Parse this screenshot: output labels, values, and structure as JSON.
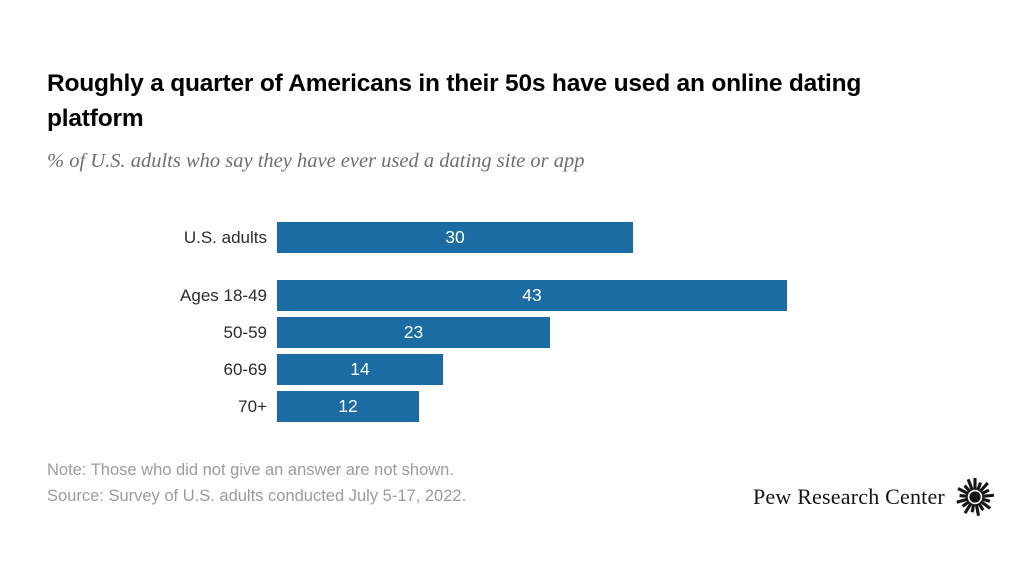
{
  "header": {
    "title": "Roughly a quarter of Americans in their 50s have used an online dating platform",
    "subtitle": "% of U.S. adults who say they have ever used a dating site or app"
  },
  "chart_data": {
    "type": "bar",
    "orientation": "horizontal",
    "categories": [
      "U.S. adults",
      "Ages 18-49",
      "50-59",
      "60-69",
      "70+"
    ],
    "values": [
      30,
      43,
      23,
      14,
      12
    ],
    "value_labels": [
      "30",
      "43",
      "23",
      "14",
      "12"
    ],
    "value_labels_position": "inside-center",
    "group_break_after_index": 0,
    "xlim": [
      0,
      43
    ],
    "grid": false,
    "legend": false,
    "bar_color": "#1b6ca3",
    "value_label_color": "#ffffff",
    "title": "Roughly a quarter of Americans in their 50s have used an online dating platform",
    "xlabel": "",
    "ylabel": ""
  },
  "footer": {
    "note": "Note: Those who did not give an answer are not shown.",
    "source": "Source: Survey of U.S. adults conducted July 5-17, 2022.",
    "brand": "Pew Research Center",
    "brand_icon": "pew-starburst-logo"
  },
  "colors": {
    "bar": "#1b6ca3",
    "title": "#000000",
    "subtitle": "#6e6e6e",
    "category_label": "#2b2b2b",
    "note": "#9b9b9b",
    "brand": "#151515",
    "background": "#ffffff"
  }
}
